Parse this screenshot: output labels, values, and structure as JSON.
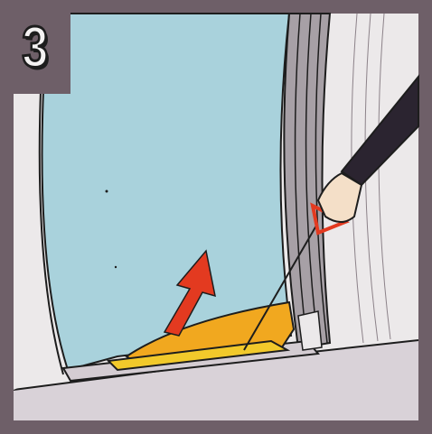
{
  "step": {
    "number": "3"
  },
  "palette": {
    "frame": "#6e5f68",
    "glass": "#a9d2dc",
    "wall": "#ece9ea",
    "floor": "#d9d2d8",
    "door_gray": "#a7a0a6",
    "yellow_panel": "#f2c92b",
    "orange_panel": "#f1a81f",
    "arrow_red": "#e33a20",
    "sleeve": "#2b2430",
    "skin": "#f4dfc8",
    "outline": "#1d1d1d"
  },
  "icons": {
    "direction": "lift-up-arrow-icon",
    "handle": "triangle-pull-handle-icon"
  }
}
